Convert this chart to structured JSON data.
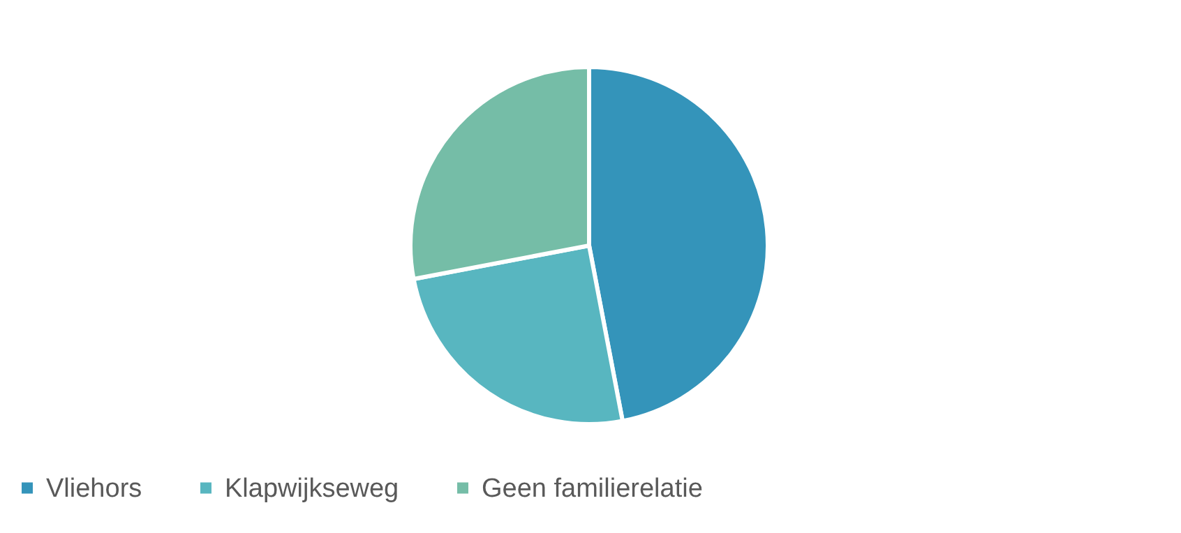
{
  "chart_data": {
    "type": "pie",
    "categories": [
      "Vliehors",
      "Klapwijkseweg",
      "Geen familierelatie"
    ],
    "values": [
      47,
      25,
      28
    ],
    "colors": [
      "#3494ba",
      "#58b6c0",
      "#75bda7"
    ],
    "legend": "bottom"
  }
}
